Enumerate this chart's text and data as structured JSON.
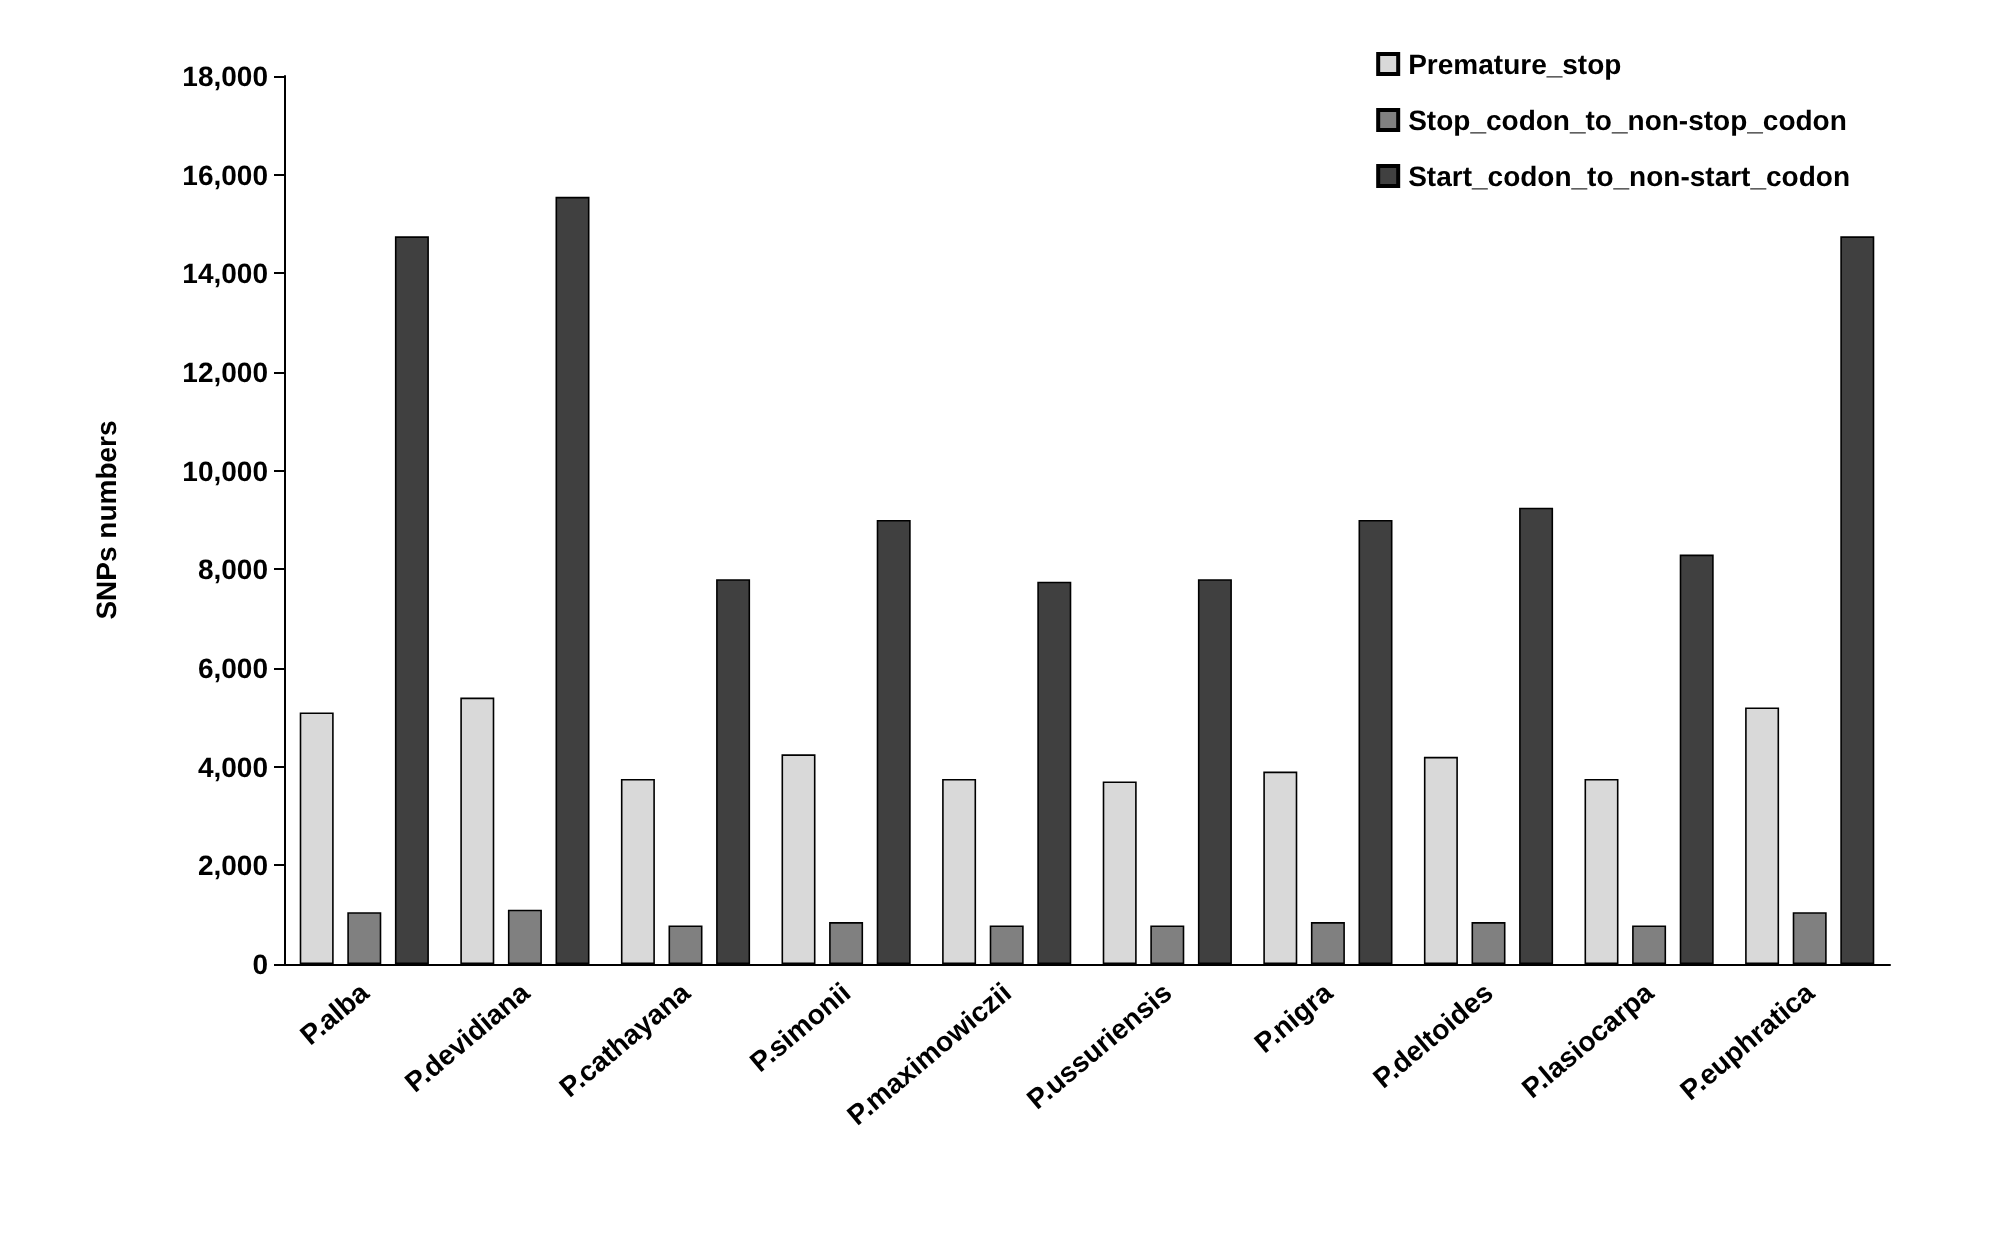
{
  "chart_data": {
    "type": "bar",
    "ylabel": "SNPs numbers",
    "categories": [
      "P.alba",
      "P.devidiana",
      "P.cathayana",
      "P.simonii",
      "P.maximowiczii",
      "P.ussuriensis",
      "P.nigra",
      "P.deltoides",
      "P.lasiocarpa",
      "P.euphratica"
    ],
    "series": [
      {
        "name": "Premature_stop",
        "color": "#d9d9d9",
        "values": [
          5100,
          5400,
          3750,
          4250,
          3750,
          3700,
          3900,
          4200,
          3750,
          5200
        ]
      },
      {
        "name": "Stop_codon_to_non-stop_codon",
        "color": "#808080",
        "values": [
          1050,
          1100,
          780,
          850,
          780,
          780,
          850,
          850,
          780,
          1050
        ]
      },
      {
        "name": "Start_codon_to_non-start_codon",
        "color": "#404040",
        "values": [
          14750,
          15550,
          7800,
          9000,
          7750,
          7800,
          9000,
          9250,
          8300,
          14750
        ]
      }
    ],
    "ylim": [
      0,
      18000
    ],
    "yticks": [
      0,
      {
        "value": 2000,
        "label": "2,000"
      },
      {
        "value": 4000,
        "label": "4,000"
      },
      {
        "value": 6000,
        "label": "6,000"
      },
      {
        "value": 8000,
        "label": "8,000"
      },
      {
        "value": 10000,
        "label": "10,000"
      },
      {
        "value": 12000,
        "label": "12,000"
      },
      {
        "value": 14000,
        "label": "14,000"
      },
      {
        "value": 16000,
        "label": "16,000"
      },
      {
        "value": 18000,
        "label": "18,000"
      }
    ],
    "grid": false,
    "legend": "top right"
  }
}
